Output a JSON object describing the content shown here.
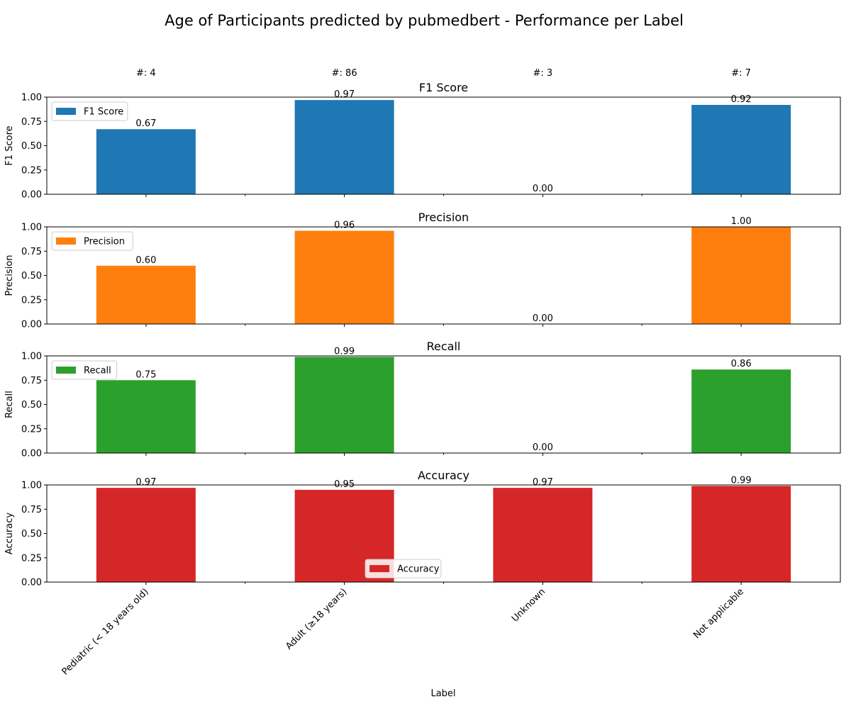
{
  "chart_data": {
    "type": "bar",
    "title": "Age of Participants predicted by pubmedbert - Performance per Label",
    "xlabel": "Label",
    "categories": [
      "Pediatric (< 18 years old)",
      "Adult (≥18 years)",
      "Unknown",
      "Not applicable"
    ],
    "counts": [
      "#: 4",
      "#: 86",
      "#: 3",
      "#: 7"
    ],
    "ylim": [
      0,
      1
    ],
    "yticks": [
      "0.00",
      "0.25",
      "0.50",
      "0.75",
      "1.00"
    ],
    "series": [
      {
        "name": "F1 Score",
        "title": "F1 Score",
        "ylabel": "F1 Score",
        "color": "#1f77b4",
        "values": [
          0.67,
          0.97,
          0.0,
          0.92
        ],
        "labels": [
          "0.67",
          "0.97",
          "0.00",
          "0.92"
        ],
        "legend_position": "upper-left"
      },
      {
        "name": "Precision",
        "title": "Precision",
        "ylabel": "Precision",
        "color": "#ff7f0e",
        "values": [
          0.6,
          0.96,
          0.0,
          1.0
        ],
        "labels": [
          "0.60",
          "0.96",
          "0.00",
          "1.00"
        ],
        "legend_position": "upper-left"
      },
      {
        "name": "Recall",
        "title": "Recall",
        "ylabel": "Recall",
        "color": "#2ca02c",
        "values": [
          0.75,
          0.99,
          0.0,
          0.86
        ],
        "labels": [
          "0.75",
          "0.99",
          "0.00",
          "0.86"
        ],
        "legend_position": "upper-left"
      },
      {
        "name": "Accuracy",
        "title": "Accuracy",
        "ylabel": "Accuracy",
        "color": "#d62728",
        "values": [
          0.97,
          0.95,
          0.97,
          0.99
        ],
        "labels": [
          "0.97",
          "0.95",
          "0.97",
          "0.99"
        ],
        "legend_position": "lower-center"
      }
    ]
  }
}
